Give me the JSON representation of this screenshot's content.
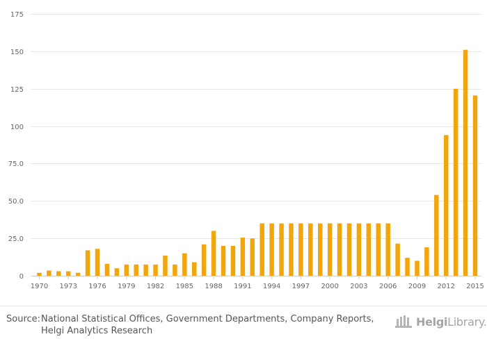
{
  "chart_data": {
    "type": "bar",
    "bar_color": "#f2a60d",
    "categories": [
      "1970",
      "1971",
      "1972",
      "1973",
      "1974",
      "1975",
      "1976",
      "1977",
      "1978",
      "1979",
      "1980",
      "1981",
      "1982",
      "1983",
      "1984",
      "1985",
      "1986",
      "1987",
      "1988",
      "1989",
      "1990",
      "1991",
      "1992",
      "1993",
      "1994",
      "1995",
      "1996",
      "1997",
      "1998",
      "1999",
      "2000",
      "2001",
      "2002",
      "2003",
      "2004",
      "2005",
      "2006",
      "2007",
      "2008",
      "2009",
      "2010",
      "2011",
      "2012",
      "2013",
      "2014",
      "2015"
    ],
    "values": [
      2,
      3.5,
      3,
      3,
      2,
      17,
      18,
      8,
      5,
      7.5,
      7.5,
      7.5,
      7.5,
      13.5,
      7.5,
      15,
      9,
      21,
      30,
      20,
      20,
      25.5,
      25,
      35,
      35,
      35,
      35,
      35,
      35,
      35,
      35,
      35,
      35,
      35,
      35,
      35,
      35,
      21.5,
      12,
      10,
      19,
      54,
      94,
      125,
      151,
      120.5
    ],
    "x_tick_labels": [
      "1970",
      "1973",
      "1976",
      "1979",
      "1982",
      "1985",
      "1988",
      "1991",
      "1994",
      "1997",
      "2000",
      "2003",
      "2006",
      "2009",
      "2012",
      "2015"
    ],
    "y_ticks": [
      0,
      25,
      50,
      75,
      100,
      125,
      150,
      175
    ],
    "y_tick_labels": [
      "0",
      "25.0",
      "50.0",
      "75.0",
      "100",
      "125",
      "150",
      "175"
    ],
    "ylim": [
      0,
      175
    ],
    "title": "",
    "xlabel": "",
    "ylabel": "",
    "grid": true
  },
  "footer": {
    "source_label": "Source:",
    "source_line1": "National Statistical Offices, Government Departments, Company Reports,",
    "source_line2": "Helgi Analytics Research",
    "brand_bold": "Helgi",
    "brand_light": "Library."
  }
}
